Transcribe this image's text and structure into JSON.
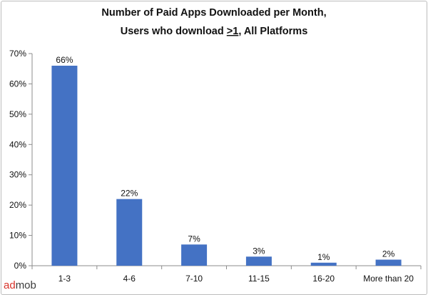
{
  "chart_data": {
    "type": "bar",
    "title_line1": "Number of Paid Apps Downloaded per Month,",
    "title_line2_pre": "Users who download ",
    "title_line2_underlined": ">1",
    "title_line2_post": ", All Platforms",
    "categories": [
      "1-3",
      "4-6",
      "7-10",
      "11-15",
      "16-20",
      "More than 20"
    ],
    "values": [
      66,
      22,
      7,
      3,
      1,
      2
    ],
    "data_labels": [
      "66%",
      "22%",
      "7%",
      "3%",
      "1%",
      "2%"
    ],
    "yticks": [
      "0%",
      "10%",
      "20%",
      "30%",
      "40%",
      "50%",
      "60%",
      "70%"
    ],
    "ylim": [
      0,
      70
    ],
    "xlabel": "",
    "ylabel": "",
    "grid": false,
    "bar_color": "#4472c4"
  },
  "brand": {
    "part1": "ad",
    "part2": "mob",
    "color_part1": "#d8332a",
    "color_part2": "#3c3c3c"
  }
}
